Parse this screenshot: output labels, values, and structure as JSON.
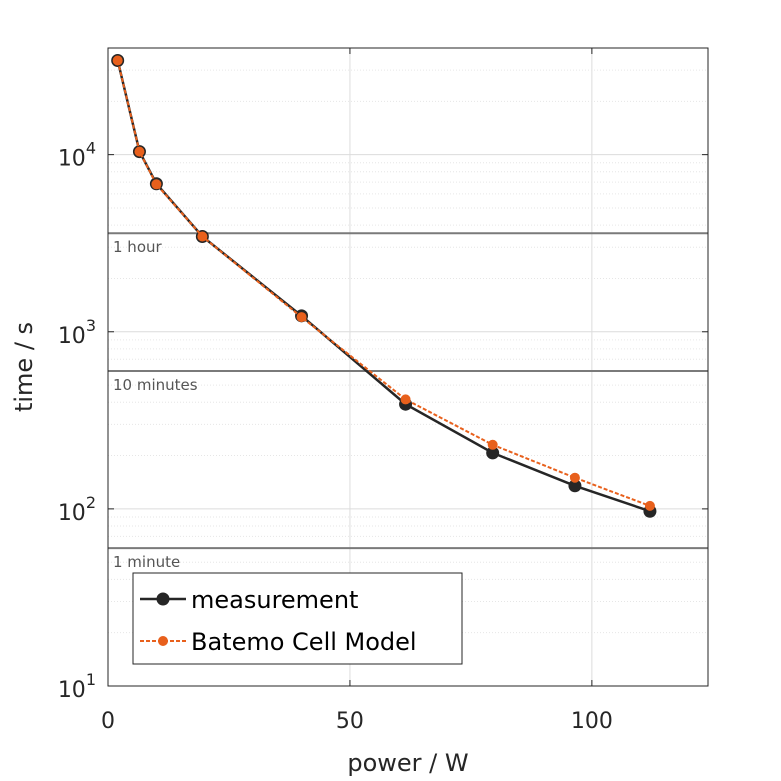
{
  "chart_data": {
    "type": "line",
    "xlabel": "power / W",
    "ylabel": "time / s",
    "xlim": [
      0,
      124
    ],
    "ylim": [
      10,
      40000
    ],
    "yscale": "log",
    "grid": true,
    "xticks": [
      {
        "value": 0,
        "label": "0"
      },
      {
        "value": 50,
        "label": "50"
      },
      {
        "value": 100,
        "label": "100"
      }
    ],
    "yticks": [
      {
        "value": 10,
        "base": "10",
        "exp": "1"
      },
      {
        "value": 100,
        "base": "10",
        "exp": "2"
      },
      {
        "value": 1000,
        "base": "10",
        "exp": "3"
      },
      {
        "value": 10000,
        "base": "10",
        "exp": "4"
      }
    ],
    "reference_lines": [
      {
        "value": 3600,
        "label": "1 hour"
      },
      {
        "value": 600,
        "label": "10 minutes"
      },
      {
        "value": 60,
        "label": "1 minute"
      }
    ],
    "legend_position": "bottom-left",
    "series": [
      {
        "name": "measurement",
        "color": "#262626",
        "style": "solid",
        "x": [
          2,
          6.5,
          10,
          19.5,
          40,
          61.5,
          79.5,
          96.5,
          112
        ],
        "y": [
          34000,
          10400,
          6850,
          3450,
          1230,
          390,
          207,
          135,
          97
        ]
      },
      {
        "name": "Batemo Cell Model",
        "color": "#e8601c",
        "style": "dashed",
        "x": [
          2,
          6.5,
          10,
          19.5,
          40,
          61.5,
          79.5,
          96.5,
          112
        ],
        "y": [
          34000,
          10400,
          6800,
          3450,
          1210,
          415,
          230,
          150,
          104
        ]
      }
    ]
  }
}
